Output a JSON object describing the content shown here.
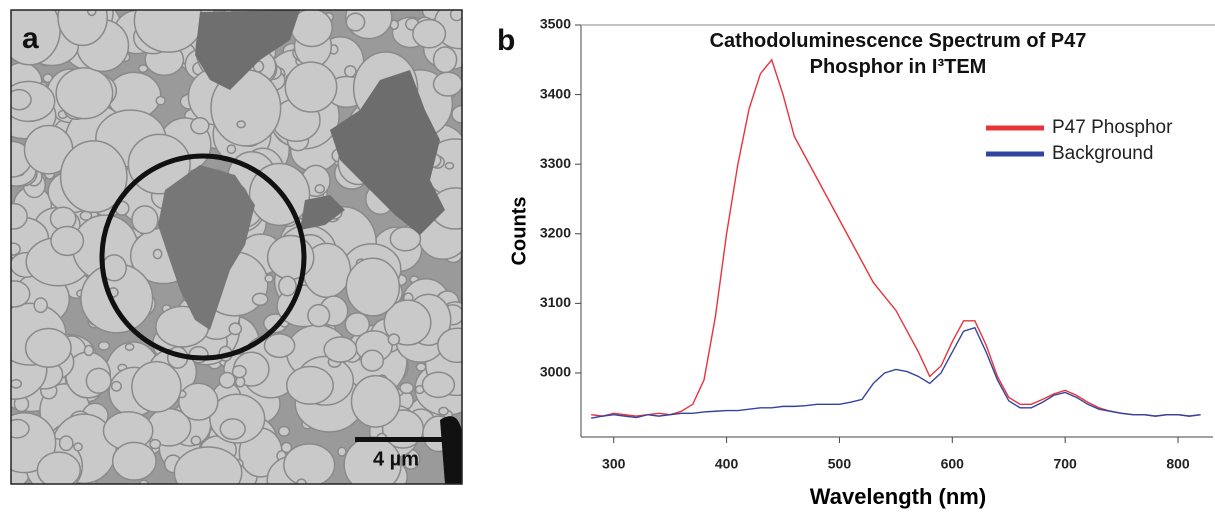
{
  "panel_a": {
    "label": "a",
    "scale_bar": "4 µm"
  },
  "chart_data": {
    "type": "line",
    "panel_label": "b",
    "title": "Cathodoluminescence Spectrum of P47 Phosphor in I³TEM",
    "x_label": "Wavelength (nm)",
    "y_label": "Counts",
    "x": [
      280,
      290,
      300,
      310,
      320,
      330,
      340,
      350,
      360,
      370,
      380,
      390,
      400,
      410,
      420,
      430,
      440,
      450,
      460,
      470,
      480,
      490,
      500,
      510,
      520,
      530,
      540,
      550,
      560,
      570,
      580,
      590,
      600,
      610,
      620,
      630,
      640,
      650,
      660,
      670,
      680,
      690,
      700,
      710,
      720,
      730,
      740,
      750,
      760,
      770,
      780,
      790,
      800,
      810,
      820
    ],
    "series": [
      {
        "name": "P47 Phosphor",
        "color": "#e8333b",
        "values": [
          2940,
          2938,
          2942,
          2940,
          2938,
          2940,
          2942,
          2940,
          2945,
          2955,
          2990,
          3080,
          3200,
          3300,
          3380,
          3430,
          3450,
          3400,
          3340,
          3310,
          3280,
          3250,
          3220,
          3190,
          3160,
          3130,
          3110,
          3090,
          3060,
          3030,
          2995,
          3010,
          3045,
          3075,
          3075,
          3040,
          2995,
          2965,
          2955,
          2955,
          2962,
          2970,
          2975,
          2968,
          2958,
          2950,
          2945,
          2942,
          2940,
          2940,
          2938,
          2940,
          2940,
          2938,
          2940
        ]
      },
      {
        "name": "Background",
        "color": "#3344a0",
        "values": [
          2935,
          2938,
          2940,
          2938,
          2936,
          2940,
          2938,
          2940,
          2942,
          2942,
          2944,
          2945,
          2946,
          2946,
          2948,
          2950,
          2950,
          2952,
          2952,
          2953,
          2955,
          2955,
          2955,
          2958,
          2962,
          2985,
          3000,
          3005,
          3002,
          2995,
          2985,
          3000,
          3030,
          3060,
          3065,
          3030,
          2990,
          2960,
          2950,
          2950,
          2958,
          2968,
          2972,
          2965,
          2955,
          2948,
          2945,
          2942,
          2940,
          2940,
          2938,
          2940,
          2940,
          2938,
          2940
        ]
      }
    ],
    "xlim": [
      271,
      831
    ],
    "ylim": [
      2908,
      3500
    ],
    "xticks": [
      300,
      400,
      500,
      600,
      700,
      800
    ],
    "yticks": [
      3000,
      3100,
      3200,
      3300,
      3400,
      3500
    ],
    "legend": "upper right"
  }
}
